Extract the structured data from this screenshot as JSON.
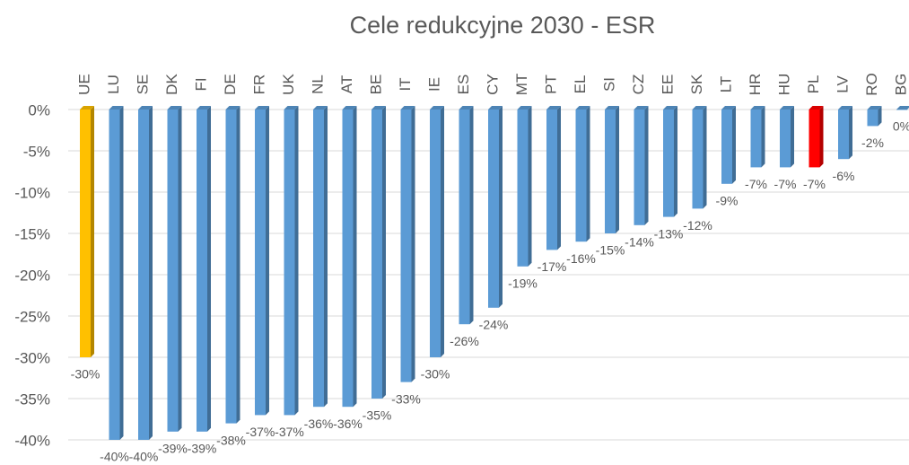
{
  "chart_data": {
    "type": "bar",
    "title": "Cele redukcyjne 2030 - ESR",
    "categories": [
      "UE",
      "LU",
      "SE",
      "DK",
      "FI",
      "DE",
      "FR",
      "UK",
      "NL",
      "AT",
      "BE",
      "IT",
      "IE",
      "ES",
      "CY",
      "MT",
      "PT",
      "EL",
      "SI",
      "CZ",
      "EE",
      "SK",
      "LT",
      "HR",
      "HU",
      "PL",
      "LV",
      "RO",
      "BG"
    ],
    "values": [
      -30,
      -40,
      -40,
      -39,
      -39,
      -38,
      -37,
      -37,
      -36,
      -36,
      -35,
      -33,
      -30,
      -26,
      -24,
      -19,
      -17,
      -16,
      -15,
      -14,
      -13,
      -12,
      -9,
      -7,
      -7,
      -7,
      -6,
      -2,
      0
    ],
    "value_labels": [
      "-30%",
      "-40%",
      "-40%",
      "-39%",
      "-39%",
      "-38%",
      "-37%",
      "-37%",
      "-36%",
      "-36%",
      "-35%",
      "-33%",
      "-30%",
      "-26%",
      "-24%",
      "-19%",
      "-17%",
      "-16%",
      "-15%",
      "-14%",
      "-13%",
      "-12%",
      "-9%",
      "-7%",
      "-7%",
      "-7%",
      "-6%",
      "-2%",
      "0%"
    ],
    "colors": [
      "#ffc000",
      "#5b9bd5",
      "#5b9bd5",
      "#5b9bd5",
      "#5b9bd5",
      "#5b9bd5",
      "#5b9bd5",
      "#5b9bd5",
      "#5b9bd5",
      "#5b9bd5",
      "#5b9bd5",
      "#5b9bd5",
      "#5b9bd5",
      "#5b9bd5",
      "#5b9bd5",
      "#5b9bd5",
      "#5b9bd5",
      "#5b9bd5",
      "#5b9bd5",
      "#5b9bd5",
      "#5b9bd5",
      "#5b9bd5",
      "#5b9bd5",
      "#5b9bd5",
      "#5b9bd5",
      "#ff0000",
      "#5b9bd5",
      "#5b9bd5",
      "#5b9bd5"
    ],
    "ylim": [
      -40,
      0
    ],
    "yticks": [
      {
        "value": 0,
        "label": "0%"
      },
      {
        "value": -5,
        "label": "-5%"
      },
      {
        "value": -10,
        "label": "-10%"
      },
      {
        "value": -15,
        "label": "-15%"
      },
      {
        "value": -20,
        "label": "-20%"
      },
      {
        "value": -25,
        "label": "-25%"
      },
      {
        "value": -30,
        "label": "-30%"
      },
      {
        "value": -35,
        "label": "-35%"
      },
      {
        "value": -40,
        "label": "-40%"
      }
    ],
    "grid": true
  }
}
